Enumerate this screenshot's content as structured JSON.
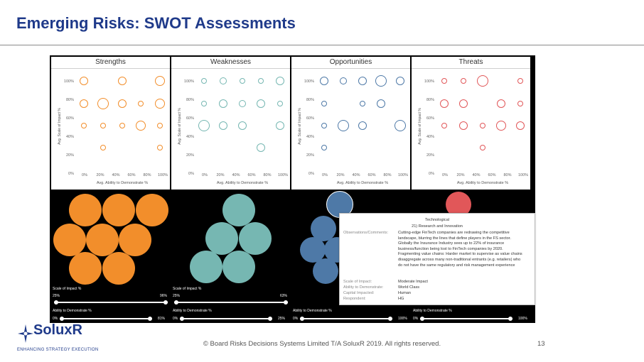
{
  "title": "Emerging Risks: SWOT Assessments",
  "panels": [
    {
      "title": "Strengths",
      "color": "#f28e2b"
    },
    {
      "title": "Weaknesses",
      "color": "#76b7b2"
    },
    {
      "title": "Opportunities",
      "color": "#4e79a7"
    },
    {
      "title": "Threats",
      "color": "#e15759"
    }
  ],
  "axes": {
    "y_label": "Avg. Scale of Impact %",
    "x_label": "Avg. Ability to Demonstrate %",
    "y_ticks": [
      "100%",
      "80%",
      "60%",
      "40%",
      "20%",
      "0%"
    ],
    "x_ticks": [
      "0%",
      "20%",
      "40%",
      "60%",
      "80%",
      "100%"
    ]
  },
  "sliders": {
    "impact_label": "Scale of Impact %",
    "ability_label": "Ability to Demonstrate %",
    "impact": [
      {
        "min": "25%",
        "max": "96%"
      },
      {
        "min": "25%",
        "max": "63%"
      },
      {
        "min": "",
        "max": ""
      },
      {
        "min": "",
        "max": ""
      }
    ],
    "ability": [
      {
        "min": "0%",
        "max": "81%"
      },
      {
        "min": "0%",
        "max": "25%"
      },
      {
        "min": "0%",
        "max": "100%"
      },
      {
        "min": "0%",
        "max": "100%"
      }
    ]
  },
  "tooltip": {
    "header": "Technological",
    "subheader": "21) Research and Innovation",
    "obs_label": "Observations/Comments:",
    "obs_text": "Cutting-edge FinTech companies are redrawing the competitive landscape, blurring the lines that define players in the FS sector. Globally the Insurance Industry sees up to 22% of insurance business/function being lost to FinTech companies by 2020. Fragmenting value chains: Harder market to supervise as value chains disaggregate across many non-traditional entrants (e.g. retailers) who do not have the same regulatory and risk management experience",
    "rows": [
      {
        "label": "Scale of Impact:",
        "value": "Moderate Impact"
      },
      {
        "label": "Ability to Demonstrate:",
        "value": "World Class"
      },
      {
        "label": "Capital Impacted:",
        "value": "Human"
      },
      {
        "label": "Respondent:",
        "value": "HG"
      }
    ]
  },
  "footer": "© Board Risks Decisions Systems Limited T/A SoluxR 2019. All rights reserved.",
  "page_number": "13",
  "logo": {
    "name": "SoluxR",
    "tagline": "ENHANCING STRATEGY EXECUTION"
  }
}
